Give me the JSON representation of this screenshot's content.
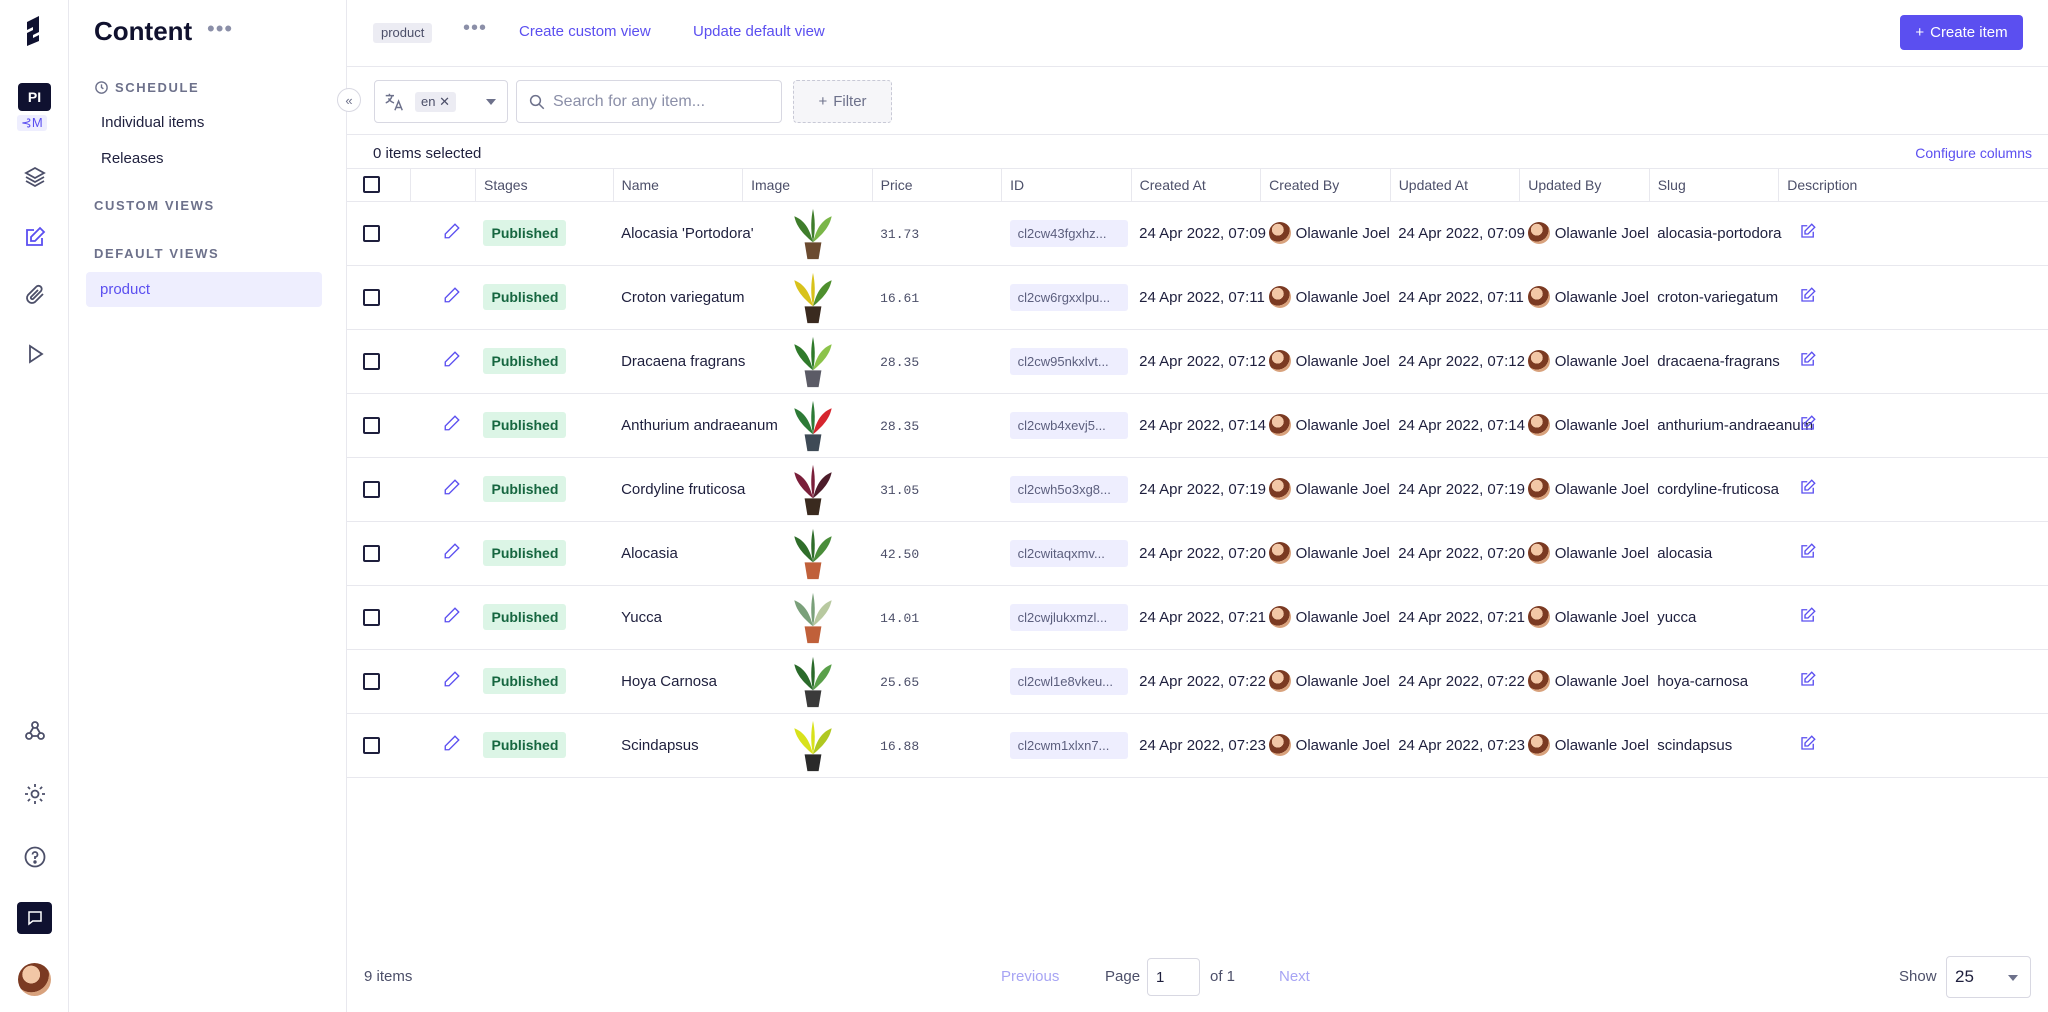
{
  "rail": {
    "logo": "hygraph-logo-icon",
    "project_initials": "PI",
    "project_secondary": "⊰M",
    "items": [
      "layers-icon",
      "edit-content-icon",
      "paperclip-icon",
      "play-icon"
    ],
    "bottom": [
      "webhook-icon",
      "gear-icon",
      "help-icon",
      "chat-icon",
      "avatar"
    ]
  },
  "sidebar": {
    "title": "Content",
    "schedule_label": "SCHEDULE",
    "schedule_items": [
      "Individual items",
      "Releases"
    ],
    "custom_views_label": "CUSTOM VIEWS",
    "default_views_label": "DEFAULT VIEWS",
    "default_views": [
      "product"
    ]
  },
  "topbar": {
    "view_chip": "product",
    "create_custom_view": "Create custom view",
    "update_default_view": "Update default view",
    "create_item": "Create item"
  },
  "toolbar": {
    "locale": "en",
    "search_placeholder": "Search for any item...",
    "filter_label": "Filter"
  },
  "selection": {
    "selected_text": "0 items selected",
    "configure_columns": "Configure columns"
  },
  "table": {
    "columns": [
      "Stages",
      "Name",
      "Image",
      "Price",
      "ID",
      "Created At",
      "Created By",
      "Updated At",
      "Updated By",
      "Slug",
      "Description"
    ],
    "rows": [
      {
        "stage": "Published",
        "name": "Alocasia 'Portodora'",
        "price": "31.73",
        "id": "cl2cw43fgxhz...",
        "created_at": "24 Apr 2022, 07:09",
        "created_by": "Olawanle Joel",
        "updated_at": "24 Apr 2022, 07:09",
        "updated_by": "Olawanle Joel",
        "slug": "alocasia-portodora"
      },
      {
        "stage": "Published",
        "name": "Croton variegatum",
        "price": "16.61",
        "id": "cl2cw6rgxxlpu...",
        "created_at": "24 Apr 2022, 07:11",
        "created_by": "Olawanle Joel",
        "updated_at": "24 Apr 2022, 07:11",
        "updated_by": "Olawanle Joel",
        "slug": "croton-variegatum"
      },
      {
        "stage": "Published",
        "name": "Dracaena fragrans",
        "price": "28.35",
        "id": "cl2cw95nkxlvt...",
        "created_at": "24 Apr 2022, 07:12",
        "created_by": "Olawanle Joel",
        "updated_at": "24 Apr 2022, 07:12",
        "updated_by": "Olawanle Joel",
        "slug": "dracaena-fragrans"
      },
      {
        "stage": "Published",
        "name": "Anthurium andraeanum",
        "price": "28.35",
        "id": "cl2cwb4xevj5...",
        "created_at": "24 Apr 2022, 07:14",
        "created_by": "Olawanle Joel",
        "updated_at": "24 Apr 2022, 07:14",
        "updated_by": "Olawanle Joel",
        "slug": "anthurium-andraeanum"
      },
      {
        "stage": "Published",
        "name": "Cordyline fruticosa",
        "price": "31.05",
        "id": "cl2cwh5o3xg8...",
        "created_at": "24 Apr 2022, 07:19",
        "created_by": "Olawanle Joel",
        "updated_at": "24 Apr 2022, 07:19",
        "updated_by": "Olawanle Joel",
        "slug": "cordyline-fruticosa"
      },
      {
        "stage": "Published",
        "name": "Alocasia",
        "price": "42.50",
        "id": "cl2cwitaqxmv...",
        "created_at": "24 Apr 2022, 07:20",
        "created_by": "Olawanle Joel",
        "updated_at": "24 Apr 2022, 07:20",
        "updated_by": "Olawanle Joel",
        "slug": "alocasia"
      },
      {
        "stage": "Published",
        "name": "Yucca",
        "price": "14.01",
        "id": "cl2cwjlukxmzl...",
        "created_at": "24 Apr 2022, 07:21",
        "created_by": "Olawanle Joel",
        "updated_at": "24 Apr 2022, 07:21",
        "updated_by": "Olawanle Joel",
        "slug": "yucca"
      },
      {
        "stage": "Published",
        "name": "Hoya Carnosa",
        "price": "25.65",
        "id": "cl2cwl1e8vkeu...",
        "created_at": "24 Apr 2022, 07:22",
        "created_by": "Olawanle Joel",
        "updated_at": "24 Apr 2022, 07:22",
        "updated_by": "Olawanle Joel",
        "slug": "hoya-carnosa"
      },
      {
        "stage": "Published",
        "name": "Scindapsus",
        "price": "16.88",
        "id": "cl2cwm1xlxn7...",
        "created_at": "24 Apr 2022, 07:23",
        "created_by": "Olawanle Joel",
        "updated_at": "24 Apr 2022, 07:23",
        "updated_by": "Olawanle Joel",
        "slug": "scindapsus"
      }
    ]
  },
  "footer": {
    "total": "9 items",
    "previous": "Previous",
    "page_label": "Page",
    "page_value": "1",
    "of_label": "of 1",
    "next": "Next",
    "show_label": "Show",
    "show_value": "25"
  },
  "colors": {
    "accent": "#5b4ff0",
    "published_bg": "#dcf5e6",
    "published_text": "#166640",
    "dark": "#0f1130"
  }
}
